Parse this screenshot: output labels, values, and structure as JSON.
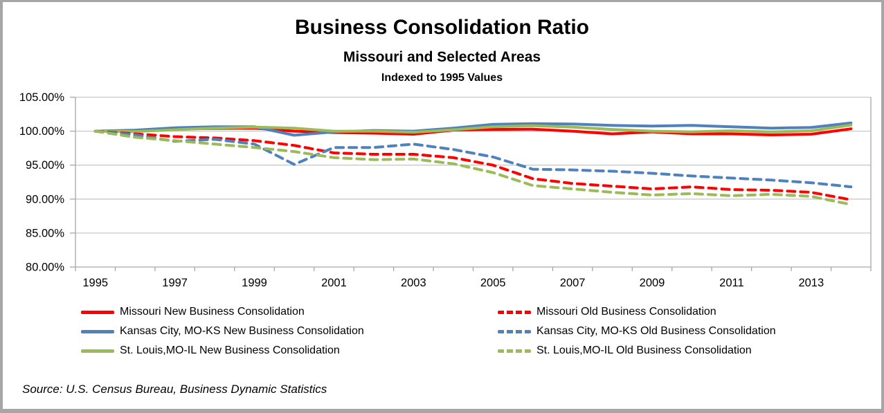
{
  "source_note": "Source: U.S. Census Bureau, Business Dynamic Statistics",
  "colors": {
    "red": "#FF0000",
    "blue": "#4F81BD",
    "green": "#9BBB59",
    "gridline": "#C9C9C9",
    "axis": "#A6A6A6",
    "frame_border": "#A6A6A6",
    "text": "#000000"
  },
  "chart_data": {
    "type": "line",
    "title": "Business Consolidation Ratio",
    "subtitle": "Missouri and Selected Areas",
    "subtitle2": "Indexed to 1995 Values",
    "x_years": [
      1995,
      1996,
      1997,
      1998,
      1999,
      2000,
      2001,
      2002,
      2003,
      2004,
      2005,
      2006,
      2007,
      2008,
      2009,
      2010,
      2011,
      2012,
      2013,
      2014
    ],
    "x_axis": {
      "tick_labels": [
        "1995",
        "1997",
        "1999",
        "2001",
        "2003",
        "2005",
        "2007",
        "2009",
        "2011",
        "2013"
      ],
      "label_every_n_years": 2
    },
    "y_axis": {
      "min": 80,
      "max": 105,
      "step": 5,
      "tick_values": [
        105,
        100,
        95,
        90,
        85,
        80
      ],
      "tick_labels": [
        "105.00%",
        "100.00%",
        "95.00%",
        "90.00%",
        "85.00%",
        "80.00%"
      ]
    },
    "grid": true,
    "legend_position": "bottom-two-columns",
    "series": [
      {
        "name": "Missouri New Business Consolidation",
        "color": "#FF0000",
        "style": "solid",
        "legend_column": "left",
        "values": [
          100.0,
          100.1,
          100.3,
          100.4,
          100.45,
          100.0,
          99.8,
          99.7,
          99.55,
          100.15,
          100.25,
          100.3,
          100.0,
          99.6,
          99.9,
          99.6,
          99.6,
          99.45,
          99.55,
          100.35
        ]
      },
      {
        "name": "Kansas City, MO-KS New Business Consolidation",
        "color": "#4F81BD",
        "style": "solid",
        "legend_column": "left",
        "values": [
          100.0,
          100.15,
          100.5,
          100.65,
          100.65,
          99.4,
          99.9,
          100.1,
          100.0,
          100.45,
          101.0,
          101.1,
          101.05,
          100.85,
          100.75,
          100.85,
          100.65,
          100.45,
          100.55,
          101.2
        ]
      },
      {
        "name": "St. Louis,MO-IL New Business Consolidation",
        "color": "#9BBB59",
        "style": "solid",
        "legend_column": "left",
        "values": [
          100.0,
          99.95,
          100.2,
          100.45,
          100.6,
          100.45,
          100.0,
          100.0,
          99.85,
          100.2,
          100.65,
          100.8,
          100.6,
          100.25,
          100.0,
          99.9,
          100.05,
          99.9,
          100.05,
          100.9
        ]
      },
      {
        "name": "Missouri Old Business Consolidation",
        "color": "#FF0000",
        "style": "dashed",
        "legend_column": "right",
        "values": [
          100.0,
          99.6,
          99.2,
          99.0,
          98.6,
          97.9,
          96.8,
          96.6,
          96.6,
          96.1,
          95.0,
          93.0,
          92.3,
          91.9,
          91.5,
          91.8,
          91.4,
          91.3,
          91.0,
          89.9
        ]
      },
      {
        "name": "Kansas City, MO-KS Old Business Consolidation",
        "color": "#4F81BD",
        "style": "dashed",
        "legend_column": "right",
        "values": [
          100.0,
          99.45,
          98.5,
          98.8,
          98.1,
          95.1,
          97.6,
          97.6,
          98.1,
          97.3,
          96.2,
          94.4,
          94.3,
          94.1,
          93.8,
          93.4,
          93.1,
          92.8,
          92.4,
          91.8
        ]
      },
      {
        "name": "St. Louis,MO-IL Old Business Consolidation",
        "color": "#9BBB59",
        "style": "dashed",
        "legend_column": "right",
        "values": [
          100.0,
          99.1,
          98.6,
          98.1,
          97.6,
          97.0,
          96.1,
          95.8,
          95.9,
          95.2,
          93.9,
          92.0,
          91.5,
          91.0,
          90.6,
          90.8,
          90.5,
          90.7,
          90.4,
          89.2
        ]
      }
    ]
  }
}
